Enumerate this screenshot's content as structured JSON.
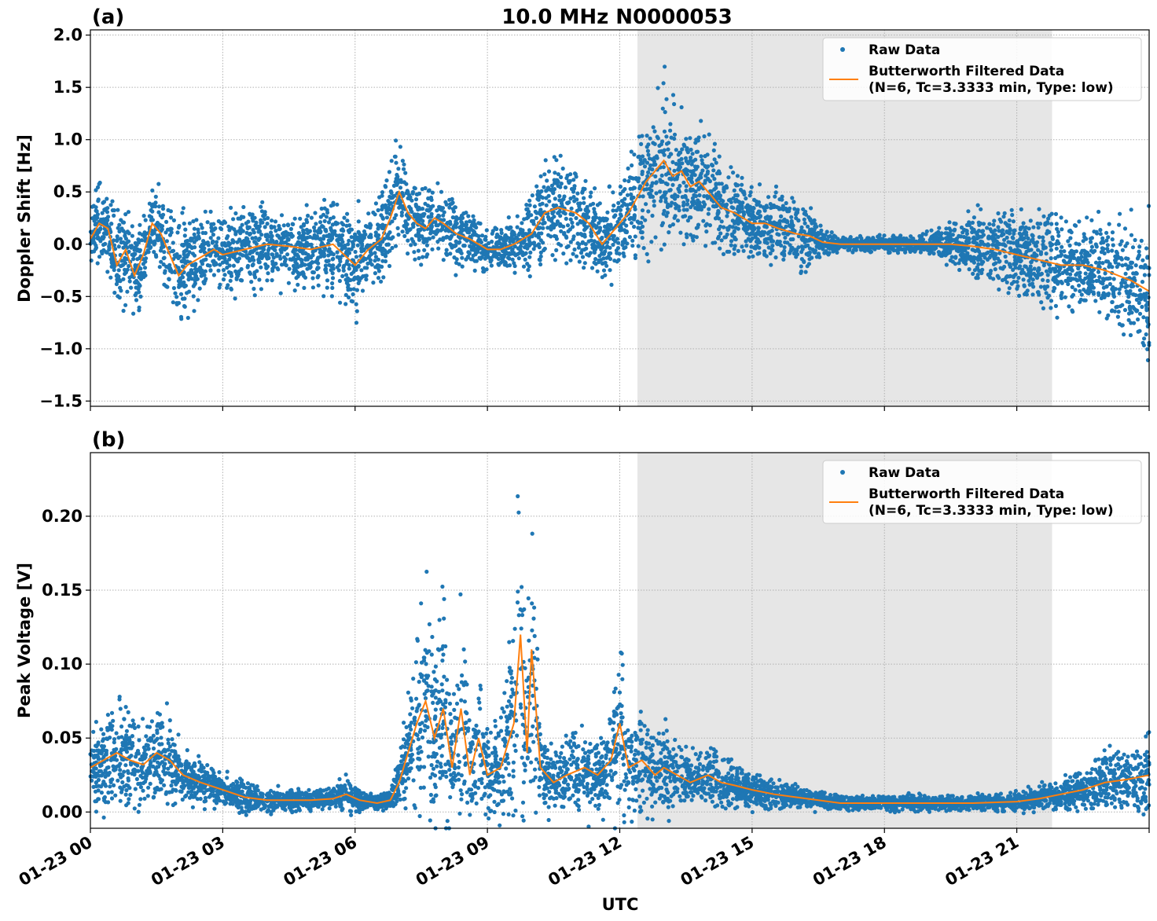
{
  "title": "10.0 MHz N0000053",
  "xlabel": "UTC",
  "x_tick_labels": [
    "01-23 00",
    "01-23 03",
    "01-23 06",
    "01-23 09",
    "01-23 12",
    "01-23 15",
    "01-23 18",
    "01-23 21"
  ],
  "legend": {
    "raw_label": "Raw Data",
    "filtered_label_line1": "Butterworth Filtered Data",
    "filtered_label_line2": "(N=6, Tc=3.3333 min, Type: low)"
  },
  "colors": {
    "raw": "#1f77b4",
    "filtered": "#ff7f0e",
    "shade": "#e6e6e6",
    "grid": "#b0b0b0"
  },
  "chart_data": [
    {
      "panel_label": "(a)",
      "type": "scatter",
      "ylabel": "Doppler Shift [Hz]",
      "xlim_hours_utc": [
        0,
        24
      ],
      "ylim": [
        -1.55,
        2.05
      ],
      "y_ticks": [
        2.0,
        1.5,
        1.0,
        0.5,
        0.0,
        -0.5,
        -1.0,
        -1.5
      ],
      "y_tick_labels": [
        "2.0",
        "1.5",
        "1.0",
        "0.5",
        "0.0",
        "−0.5",
        "−1.0",
        "−1.5"
      ],
      "shaded_interval_hours_utc": [
        12.4,
        21.8
      ],
      "grid": true,
      "legend_position": "top-right",
      "series": [
        {
          "name": "Butterworth Filtered Data",
          "style": "line",
          "x_hours_utc": [
            0,
            0.2,
            0.4,
            0.6,
            0.8,
            1.0,
            1.2,
            1.4,
            1.6,
            1.8,
            2.0,
            2.2,
            2.4,
            2.6,
            2.8,
            3.0,
            3.5,
            4.0,
            4.5,
            5.0,
            5.5,
            6.0,
            6.3,
            6.6,
            6.8,
            7.0,
            7.2,
            7.4,
            7.6,
            7.8,
            8.0,
            8.3,
            8.6,
            9.0,
            9.3,
            9.6,
            10.0,
            10.3,
            10.6,
            11.0,
            11.3,
            11.6,
            12.0,
            12.2,
            12.4,
            12.6,
            12.8,
            13.0,
            13.2,
            13.4,
            13.6,
            13.8,
            14.0,
            14.3,
            14.6,
            15.0,
            15.3,
            15.6,
            16.0,
            16.3,
            16.6,
            17.0,
            18.0,
            19.0,
            19.5,
            20.0,
            20.5,
            21.0,
            21.5,
            22.0,
            22.5,
            23.0,
            23.3,
            23.6,
            24.0
          ],
          "y": [
            0.05,
            0.2,
            0.15,
            -0.2,
            -0.05,
            -0.3,
            -0.1,
            0.2,
            0.1,
            -0.1,
            -0.3,
            -0.2,
            -0.15,
            -0.1,
            -0.05,
            -0.1,
            -0.05,
            0.0,
            -0.02,
            -0.05,
            0.0,
            -0.2,
            -0.05,
            0.05,
            0.25,
            0.5,
            0.3,
            0.2,
            0.15,
            0.25,
            0.2,
            0.1,
            0.05,
            -0.05,
            -0.05,
            0.0,
            0.1,
            0.3,
            0.35,
            0.3,
            0.2,
            0.0,
            0.2,
            0.3,
            0.45,
            0.6,
            0.7,
            0.8,
            0.65,
            0.7,
            0.55,
            0.6,
            0.5,
            0.35,
            0.3,
            0.2,
            0.2,
            0.15,
            0.1,
            0.08,
            0.02,
            0.0,
            0.0,
            0.0,
            0.0,
            -0.02,
            -0.05,
            -0.1,
            -0.15,
            -0.2,
            -0.2,
            -0.25,
            -0.3,
            -0.35,
            -0.45
          ]
        },
        {
          "name": "Raw Data",
          "style": "scatter",
          "x_hours_utc": [
            0,
            0.2,
            0.4,
            0.6,
            0.8,
            1.0,
            1.2,
            1.4,
            1.6,
            1.8,
            2.0,
            2.2,
            2.4,
            2.6,
            2.8,
            3.0,
            3.5,
            4.0,
            4.5,
            5.0,
            5.5,
            6.0,
            6.3,
            6.6,
            6.8,
            7.0,
            7.2,
            7.4,
            7.6,
            7.8,
            8.0,
            8.3,
            8.6,
            9.0,
            9.3,
            9.6,
            10.0,
            10.3,
            10.6,
            11.0,
            11.3,
            11.6,
            12.0,
            12.2,
            12.4,
            12.6,
            12.8,
            13.0,
            13.2,
            13.4,
            13.6,
            13.8,
            14.0,
            14.3,
            14.6,
            15.0,
            15.3,
            15.6,
            16.0,
            16.3,
            16.6,
            17.0,
            18.0,
            19.0,
            19.5,
            20.0,
            20.5,
            21.0,
            21.5,
            22.0,
            22.5,
            23.0,
            23.3,
            23.6,
            24.0
          ],
          "y_center": [
            0.05,
            0.2,
            0.15,
            -0.2,
            -0.05,
            -0.3,
            -0.1,
            0.2,
            0.1,
            -0.1,
            -0.3,
            -0.2,
            -0.15,
            -0.1,
            -0.05,
            -0.1,
            -0.05,
            0.0,
            -0.02,
            -0.05,
            0.0,
            -0.2,
            -0.05,
            0.05,
            0.25,
            0.5,
            0.3,
            0.2,
            0.15,
            0.25,
            0.2,
            0.1,
            0.05,
            -0.05,
            -0.05,
            0.0,
            0.1,
            0.3,
            0.35,
            0.3,
            0.2,
            0.0,
            0.2,
            0.3,
            0.45,
            0.6,
            0.7,
            0.8,
            0.65,
            0.7,
            0.55,
            0.6,
            0.5,
            0.35,
            0.3,
            0.2,
            0.2,
            0.15,
            0.1,
            0.08,
            0.02,
            0.0,
            0.0,
            0.0,
            0.0,
            -0.02,
            -0.05,
            -0.1,
            -0.15,
            -0.2,
            -0.2,
            -0.25,
            -0.3,
            -0.35,
            -0.45
          ],
          "y_spread": [
            0.3,
            0.3,
            0.3,
            0.35,
            0.4,
            0.35,
            0.3,
            0.3,
            0.3,
            0.4,
            0.45,
            0.4,
            0.35,
            0.3,
            0.3,
            0.3,
            0.3,
            0.3,
            0.3,
            0.3,
            0.35,
            0.4,
            0.3,
            0.35,
            0.4,
            0.45,
            0.35,
            0.3,
            0.3,
            0.3,
            0.3,
            0.25,
            0.2,
            0.15,
            0.15,
            0.2,
            0.3,
            0.35,
            0.35,
            0.35,
            0.3,
            0.3,
            0.35,
            0.4,
            0.45,
            0.5,
            0.55,
            0.6,
            0.55,
            0.5,
            0.45,
            0.45,
            0.4,
            0.35,
            0.3,
            0.3,
            0.3,
            0.3,
            0.3,
            0.25,
            0.1,
            0.05,
            0.06,
            0.08,
            0.15,
            0.25,
            0.3,
            0.3,
            0.35,
            0.35,
            0.35,
            0.4,
            0.45,
            0.5,
            0.55
          ]
        }
      ]
    },
    {
      "panel_label": "(b)",
      "type": "scatter",
      "ylabel": "Peak Voltage [V]",
      "xlim_hours_utc": [
        0,
        24
      ],
      "ylim": [
        -0.011,
        0.243
      ],
      "y_ticks": [
        0.2,
        0.15,
        0.1,
        0.05,
        0.0
      ],
      "y_tick_labels": [
        "0.20",
        "0.15",
        "0.10",
        "0.05",
        "0.00"
      ],
      "shaded_interval_hours_utc": [
        12.4,
        21.8
      ],
      "grid": true,
      "legend_position": "top-right",
      "series": [
        {
          "name": "Butterworth Filtered Data",
          "style": "line",
          "x_hours_utc": [
            0,
            0.3,
            0.6,
            0.9,
            1.2,
            1.5,
            1.8,
            2.1,
            2.5,
            3.0,
            3.5,
            4.0,
            4.5,
            5.0,
            5.5,
            5.8,
            6.1,
            6.5,
            6.8,
            7.0,
            7.2,
            7.4,
            7.6,
            7.8,
            8.0,
            8.2,
            8.4,
            8.6,
            8.8,
            9.0,
            9.3,
            9.6,
            9.75,
            9.9,
            10.0,
            10.2,
            10.5,
            10.8,
            11.2,
            11.5,
            11.8,
            12.0,
            12.2,
            12.5,
            12.8,
            13.0,
            13.3,
            13.6,
            14.0,
            14.3,
            14.6,
            15.0,
            15.5,
            16.0,
            16.5,
            17.0,
            18.0,
            19.0,
            20.0,
            21.0,
            21.5,
            22.0,
            22.5,
            23.0,
            23.5,
            24.0
          ],
          "y": [
            0.03,
            0.035,
            0.04,
            0.035,
            0.032,
            0.04,
            0.035,
            0.025,
            0.02,
            0.015,
            0.01,
            0.008,
            0.008,
            0.008,
            0.009,
            0.012,
            0.008,
            0.006,
            0.008,
            0.02,
            0.04,
            0.06,
            0.075,
            0.05,
            0.07,
            0.03,
            0.07,
            0.025,
            0.05,
            0.025,
            0.03,
            0.06,
            0.12,
            0.04,
            0.11,
            0.03,
            0.02,
            0.025,
            0.03,
            0.025,
            0.035,
            0.06,
            0.03,
            0.035,
            0.025,
            0.03,
            0.025,
            0.02,
            0.025,
            0.02,
            0.018,
            0.015,
            0.012,
            0.01,
            0.008,
            0.006,
            0.006,
            0.006,
            0.006,
            0.007,
            0.009,
            0.012,
            0.015,
            0.02,
            0.022,
            0.025
          ]
        },
        {
          "name": "Raw Data",
          "style": "scatter",
          "x_hours_utc": [
            0,
            0.3,
            0.6,
            0.9,
            1.2,
            1.5,
            1.8,
            2.1,
            2.5,
            3.0,
            3.5,
            4.0,
            4.5,
            5.0,
            5.5,
            5.8,
            6.1,
            6.5,
            6.8,
            7.0,
            7.2,
            7.4,
            7.6,
            7.8,
            8.0,
            8.2,
            8.4,
            8.6,
            8.8,
            9.0,
            9.3,
            9.6,
            9.75,
            9.9,
            10.0,
            10.2,
            10.5,
            10.8,
            11.2,
            11.5,
            11.8,
            12.0,
            12.2,
            12.5,
            12.8,
            13.0,
            13.3,
            13.6,
            14.0,
            14.3,
            14.6,
            15.0,
            15.5,
            16.0,
            16.5,
            17.0,
            18.0,
            19.0,
            20.0,
            21.0,
            21.5,
            22.0,
            22.5,
            23.0,
            23.5,
            24.0
          ],
          "y_center": [
            0.03,
            0.035,
            0.04,
            0.035,
            0.032,
            0.04,
            0.035,
            0.025,
            0.02,
            0.015,
            0.01,
            0.008,
            0.008,
            0.008,
            0.009,
            0.012,
            0.008,
            0.006,
            0.008,
            0.02,
            0.04,
            0.06,
            0.075,
            0.05,
            0.07,
            0.03,
            0.07,
            0.025,
            0.05,
            0.025,
            0.03,
            0.06,
            0.12,
            0.04,
            0.11,
            0.03,
            0.02,
            0.025,
            0.03,
            0.025,
            0.035,
            0.06,
            0.03,
            0.035,
            0.025,
            0.03,
            0.025,
            0.02,
            0.025,
            0.02,
            0.018,
            0.015,
            0.012,
            0.01,
            0.008,
            0.006,
            0.006,
            0.006,
            0.006,
            0.007,
            0.009,
            0.012,
            0.015,
            0.02,
            0.022,
            0.025
          ],
          "y_spread": [
            0.02,
            0.025,
            0.03,
            0.025,
            0.022,
            0.03,
            0.025,
            0.015,
            0.012,
            0.01,
            0.008,
            0.006,
            0.006,
            0.006,
            0.006,
            0.01,
            0.006,
            0.004,
            0.006,
            0.015,
            0.03,
            0.05,
            0.06,
            0.05,
            0.06,
            0.03,
            0.06,
            0.025,
            0.04,
            0.025,
            0.03,
            0.06,
            0.1,
            0.04,
            0.09,
            0.03,
            0.015,
            0.02,
            0.025,
            0.02,
            0.03,
            0.05,
            0.025,
            0.03,
            0.02,
            0.025,
            0.02,
            0.015,
            0.02,
            0.015,
            0.012,
            0.01,
            0.008,
            0.006,
            0.005,
            0.004,
            0.004,
            0.004,
            0.004,
            0.005,
            0.007,
            0.01,
            0.012,
            0.016,
            0.018,
            0.02
          ]
        }
      ]
    }
  ]
}
